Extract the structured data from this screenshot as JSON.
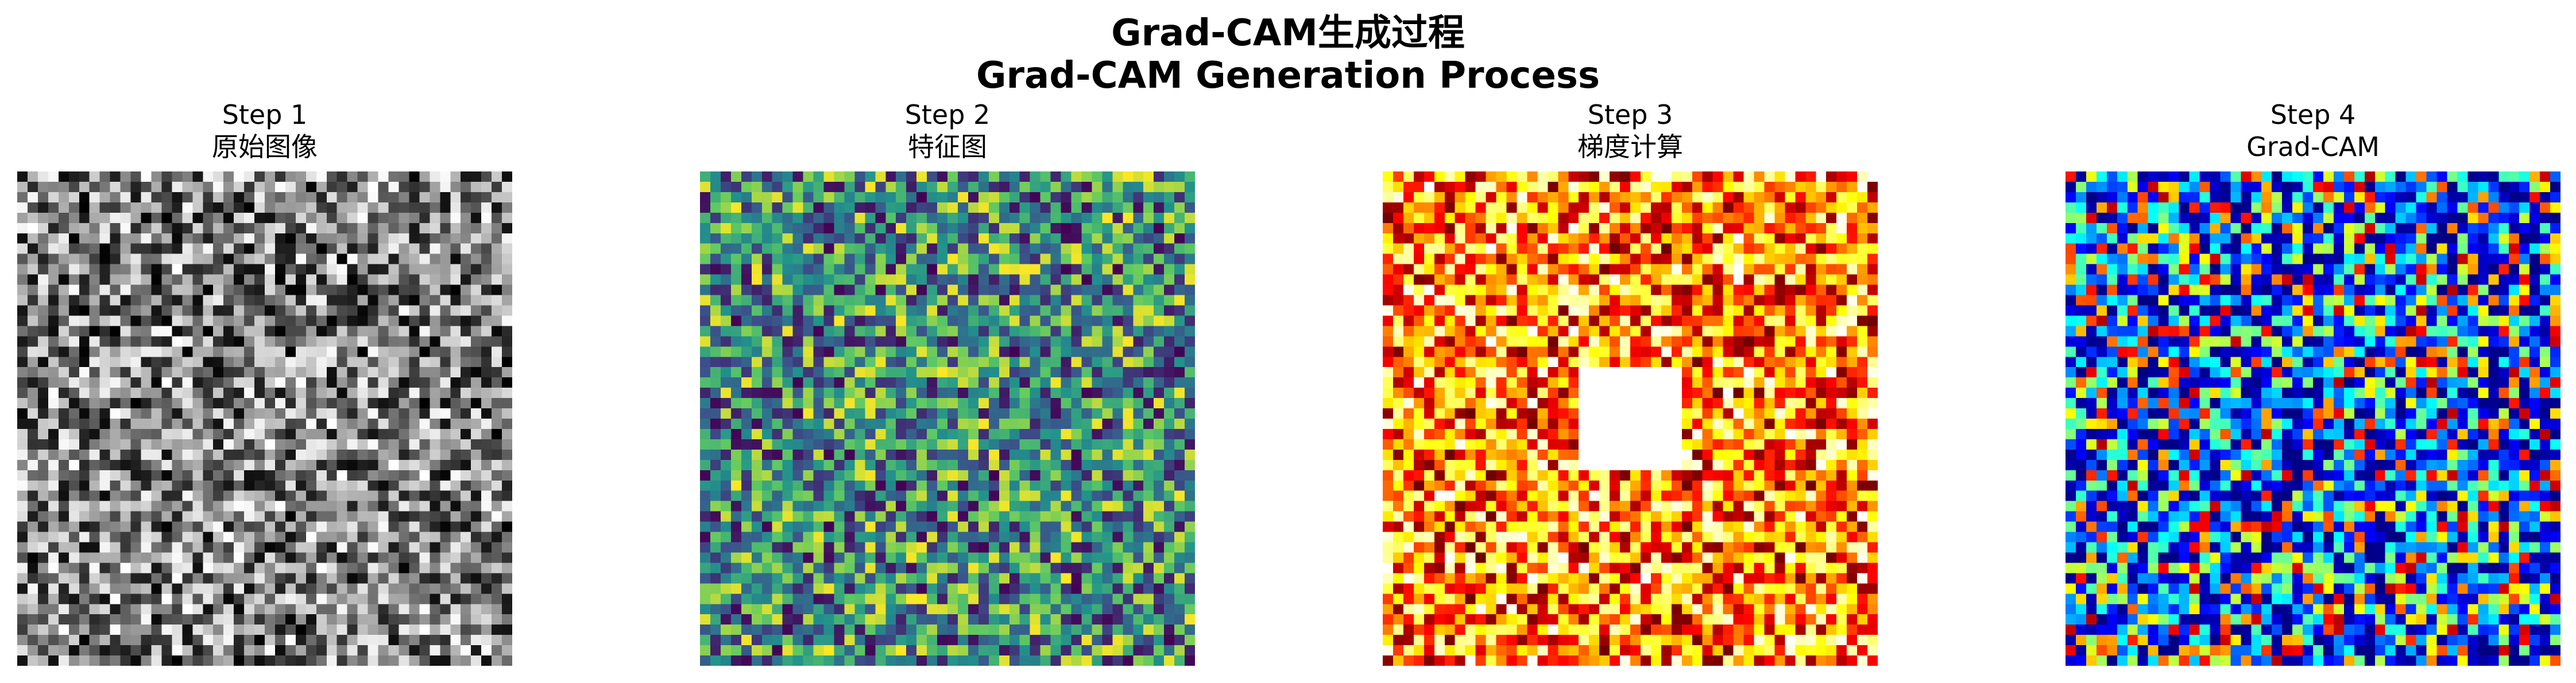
{
  "figure": {
    "title_line1": "Grad-CAM生成过程",
    "title_line2": "Grad-CAM Generation Process"
  },
  "chart_data": [
    {
      "type": "heatmap",
      "title": "Step 1\n原始图像",
      "title_lines": [
        "Step 1",
        "原始图像"
      ],
      "colormap": "gray",
      "grid_size": [
        48,
        48
      ],
      "value_range": [
        0,
        1
      ],
      "content": "random noise",
      "axes_visible": false
    },
    {
      "type": "heatmap",
      "title": "Step 2\n特征图",
      "title_lines": [
        "Step 2",
        "特征图"
      ],
      "colormap": "viridis",
      "grid_size": [
        48,
        48
      ],
      "value_range": [
        0,
        1
      ],
      "content": "random noise",
      "axes_visible": false
    },
    {
      "type": "heatmap",
      "title": "Step 3\n梯度计算",
      "title_lines": [
        "Step 3",
        "梯度计算"
      ],
      "colormap": "hot",
      "grid_size": [
        48,
        48
      ],
      "value_range": [
        0,
        1
      ],
      "content": "random noise with a blank (white) square region in the centre",
      "blank_region_rows": [
        19,
        28
      ],
      "blank_region_cols": [
        19,
        28
      ],
      "axes_visible": false
    },
    {
      "type": "heatmap",
      "title": "Step 4\nGrad-CAM",
      "title_lines": [
        "Step 4",
        "Grad-CAM"
      ],
      "colormap": "jet",
      "grid_size": [
        48,
        48
      ],
      "value_range": [
        0,
        1
      ],
      "content": "random noise skewed toward low values",
      "axes_visible": false
    }
  ]
}
